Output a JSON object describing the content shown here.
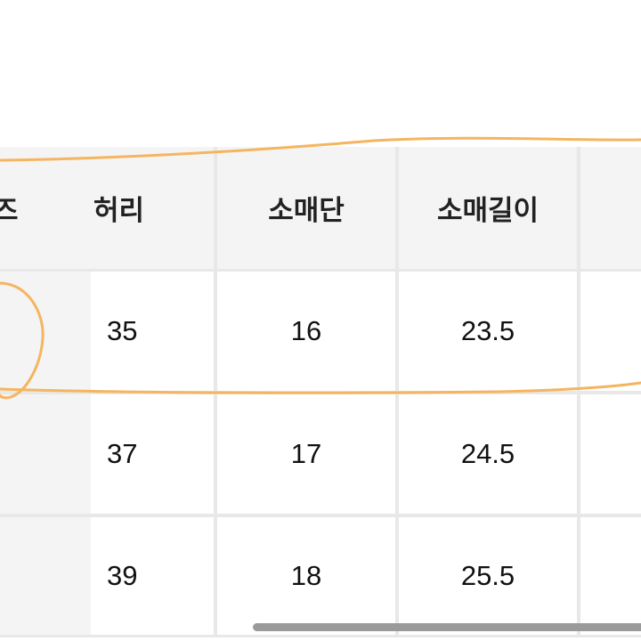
{
  "table": {
    "headers": [
      "즈",
      "허리",
      "소매단",
      "소매길이",
      ""
    ],
    "rows": [
      {
        "waist": "35",
        "cuff": "16",
        "sleeve": "23.5"
      },
      {
        "waist": "37",
        "cuff": "17",
        "sleeve": "24.5"
      },
      {
        "waist": "39",
        "cuff": "18",
        "sleeve": "25.5"
      }
    ]
  },
  "annotation_color": "#f5b560"
}
